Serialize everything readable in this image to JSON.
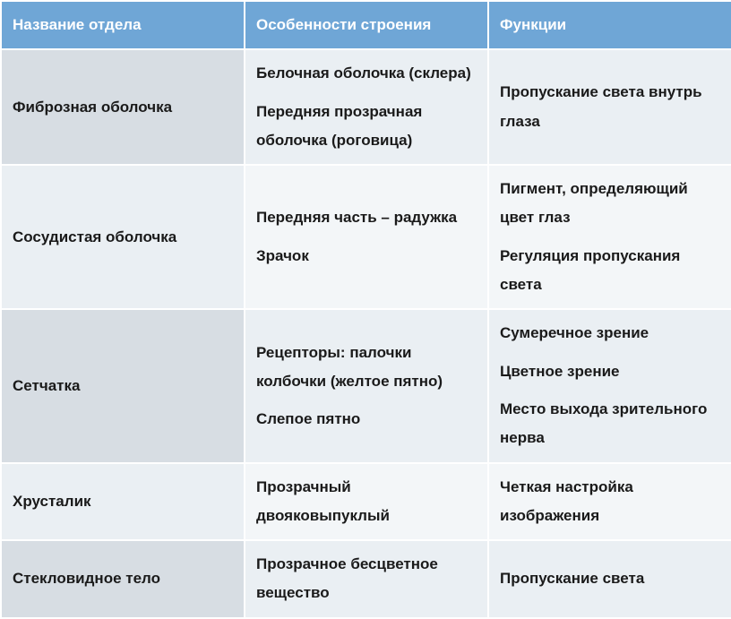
{
  "table": {
    "type": "table",
    "columns": [
      "Название отдела",
      "Особенности строения",
      "Функции"
    ],
    "rows": [
      [
        [
          "Фиброзная оболочка"
        ],
        [
          "Белочная оболочка (склера)",
          "Передняя прозрачная оболочка (роговица)"
        ],
        [
          "Пропускание света внутрь глаза"
        ]
      ],
      [
        [
          "Сосудистая оболочка"
        ],
        [
          "Передняя часть – радужка",
          "Зрачок"
        ],
        [
          "Пигмент, определяющий цвет глаз",
          "Регуляция пропускания света"
        ]
      ],
      [
        [
          "Сетчатка"
        ],
        [
          "Рецепторы: палочки колбочки (желтое пятно)",
          "Слепое пятно"
        ],
        [
          "Сумеречное зрение",
          "Цветное зрение",
          "Место выхода зрительного нерва"
        ]
      ],
      [
        [
          "Хрусталик"
        ],
        [
          "Прозрачный двояковыпуклый"
        ],
        [
          "Четкая настройка изображения"
        ]
      ],
      [
        [
          "Стекловидное тело"
        ],
        [
          "Прозрачное бесцветное вещество"
        ],
        [
          "Пропускание света"
        ]
      ]
    ],
    "header_bg": "#6fa6d6",
    "header_fg": "#ffffff",
    "row_colors_odd": [
      "#d7dde3",
      "#eaeff3",
      "#eaeff3"
    ],
    "row_colors_even": [
      "#eaeff3",
      "#f3f6f8",
      "#f3f6f8"
    ],
    "border_color": "#ffffff",
    "font_family": "Arial",
    "header_fontweight": 700,
    "body_fontweight": 600,
    "cell_fontsize": 17
  }
}
